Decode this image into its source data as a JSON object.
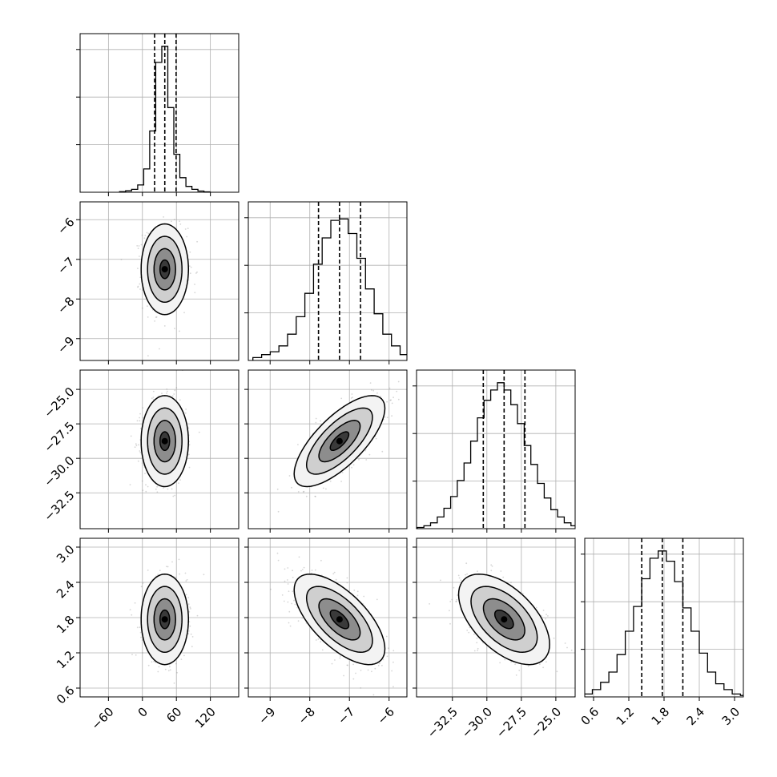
{
  "chart_data": {
    "type": "corner",
    "grid": true,
    "colors": {
      "line": "#000000",
      "grid": "#b0b0b0",
      "points": "#8a8a8a"
    },
    "params": [
      {
        "ticks": [
          -60,
          0,
          60,
          120
        ],
        "tick_labels": [
          "−60",
          "0",
          "60",
          "120"
        ],
        "range": [
          -110,
          170
        ],
        "quantiles": [
          21.5,
          39.5,
          59.5
        ],
        "mean": 39.5,
        "std": 19
      },
      {
        "ticks": [
          -9,
          -8,
          -7,
          -6
        ],
        "tick_labels": [
          "−9",
          "−8",
          "−7",
          "−6"
        ],
        "range": [
          -9.55,
          -5.55
        ],
        "quantiles": [
          -7.78,
          -7.25,
          -6.72
        ],
        "mean": -7.25,
        "std": 0.52
      },
      {
        "ticks": [
          -32.5,
          -30.0,
          -27.5,
          -25.0
        ],
        "tick_labels": [
          "−32.5",
          "−30.0",
          "−27.5",
          "−25.0"
        ],
        "range": [
          -35.1,
          -23.6
        ],
        "quantiles": [
          -30.26,
          -28.75,
          -27.24
        ],
        "mean": -28.75,
        "std": 1.5
      },
      {
        "ticks": [
          0.6,
          1.2,
          1.8,
          2.4,
          3.0
        ],
        "tick_labels": [
          "0.6",
          "1.2",
          "1.8",
          "2.4",
          "3.0"
        ],
        "range": [
          0.45,
          3.15
        ],
        "quantiles": [
          1.42,
          1.77,
          2.12
        ],
        "mean": 1.77,
        "std": 0.35
      }
    ],
    "correlations": [
      {
        "i": 1,
        "j": 0,
        "r": 0.0
      },
      {
        "i": 2,
        "j": 0,
        "r": 0.0
      },
      {
        "i": 2,
        "j": 1,
        "r": 0.72
      },
      {
        "i": 3,
        "j": 0,
        "r": 0.0
      },
      {
        "i": 3,
        "j": 1,
        "r": -0.65
      },
      {
        "i": 3,
        "j": 2,
        "r": -0.55
      }
    ],
    "histograms": [
      [
        0.004,
        0.01,
        0.02,
        0.05,
        0.16,
        0.42,
        0.89,
        1.0,
        0.58,
        0.26,
        0.1,
        0.04,
        0.02,
        0.008,
        0.003
      ],
      [
        0.02,
        0.04,
        0.06,
        0.1,
        0.18,
        0.3,
        0.46,
        0.66,
        0.84,
        0.96,
        0.97,
        0.87,
        0.7,
        0.49,
        0.32,
        0.18,
        0.1,
        0.04,
        0.025,
        0.01
      ],
      [
        0.008,
        0.02,
        0.04,
        0.08,
        0.14,
        0.22,
        0.33,
        0.45,
        0.6,
        0.76,
        0.88,
        0.95,
        1.0,
        0.95,
        0.85,
        0.72,
        0.57,
        0.44,
        0.31,
        0.21,
        0.13,
        0.08,
        0.04,
        0.02,
        0.01,
        0.005
      ],
      [
        0.01,
        0.02,
        0.05,
        0.1,
        0.17,
        0.29,
        0.45,
        0.62,
        0.81,
        0.95,
        1.0,
        0.93,
        0.79,
        0.61,
        0.45,
        0.3,
        0.17,
        0.09,
        0.05,
        0.02,
        0.01
      ]
    ]
  }
}
